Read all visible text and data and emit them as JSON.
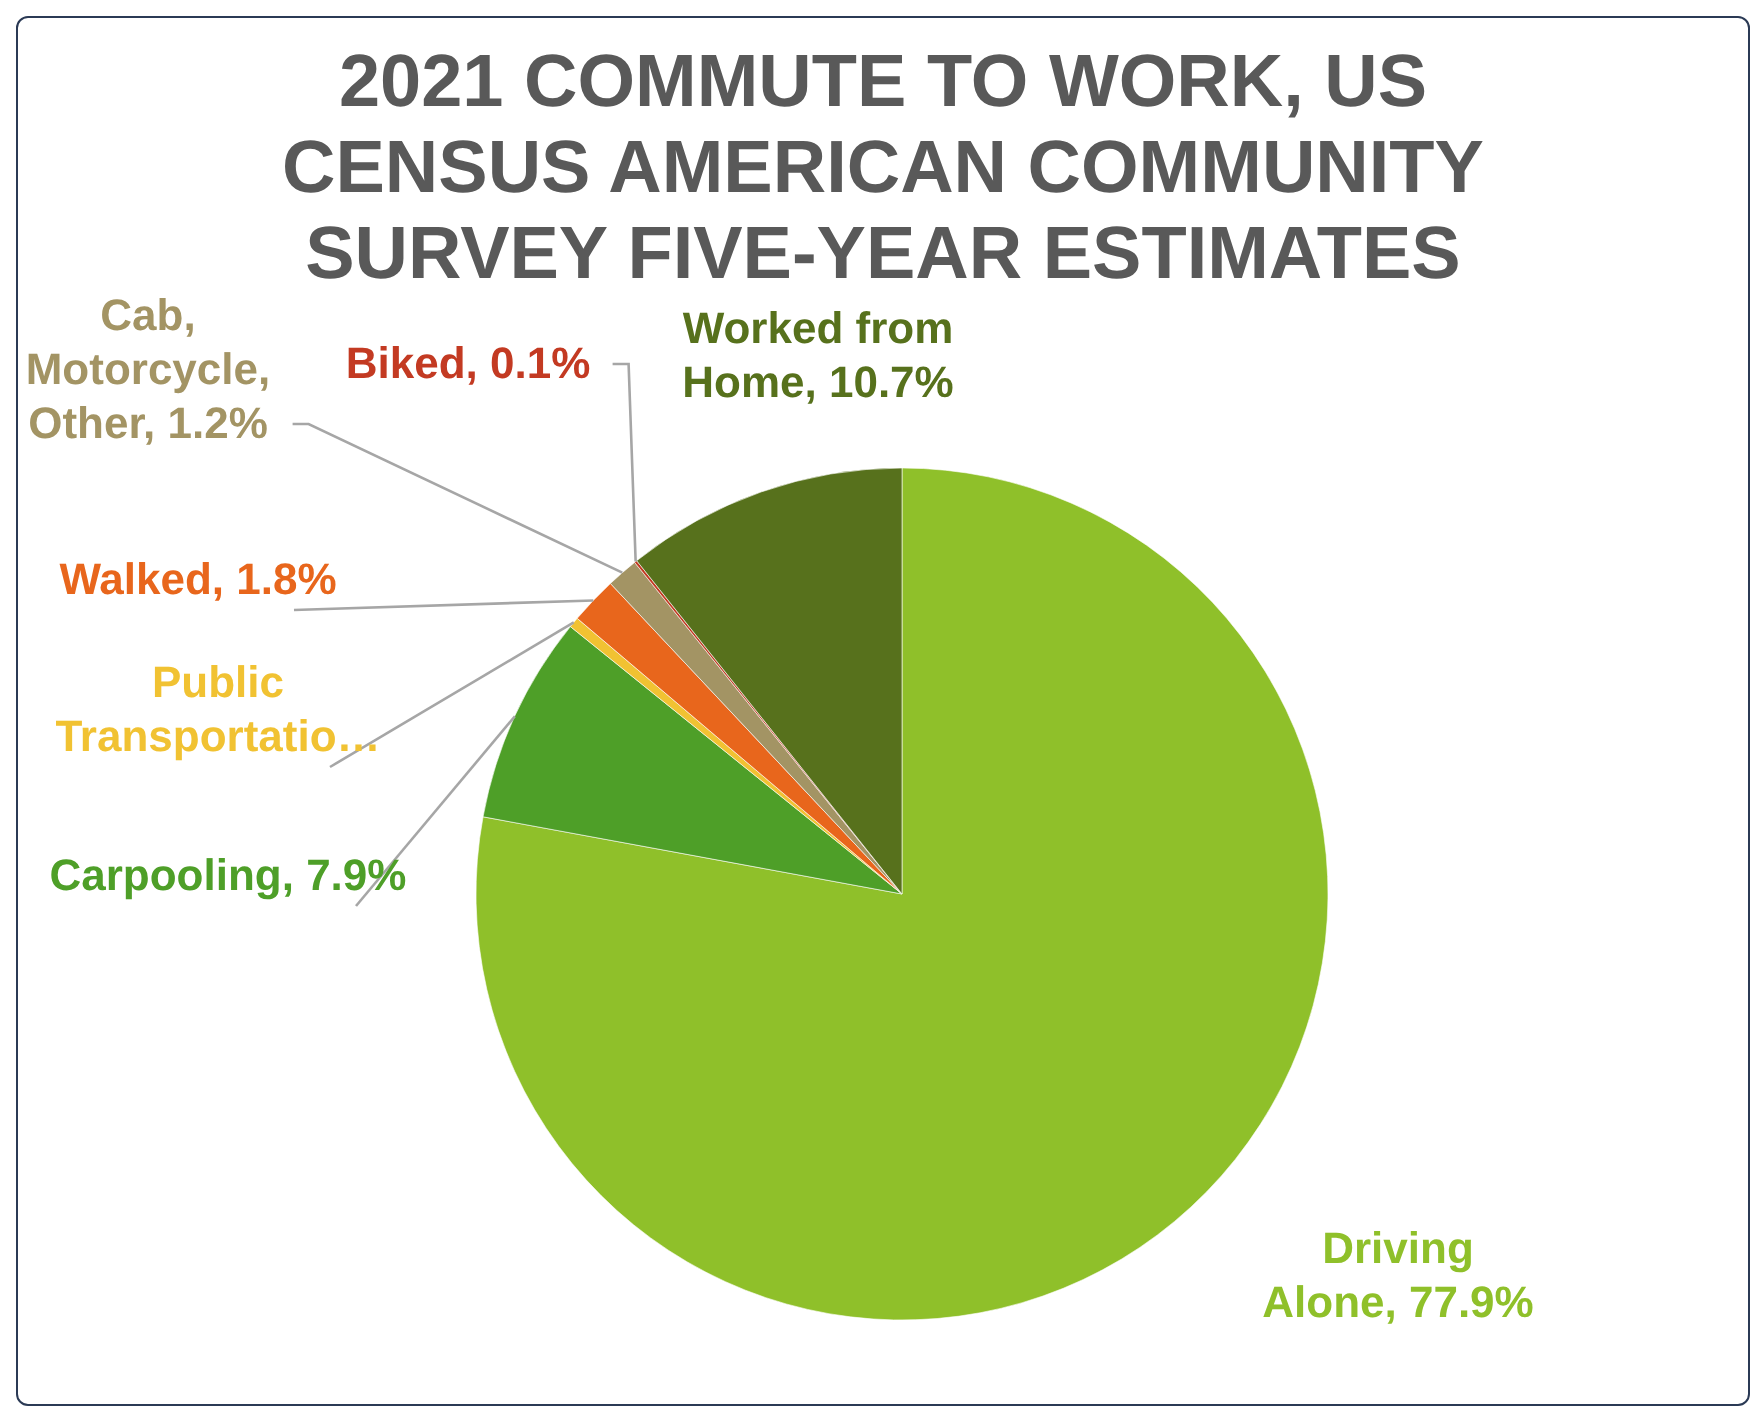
{
  "chart_data": {
    "type": "pie",
    "title": "2021 COMMUTE TO WORK, US CENSUS AMERICAN COMMUNITY SURVEY FIVE-YEAR ESTIMATES",
    "categories": [
      "Driving Alone",
      "Carpooling",
      "Public Transportatio…",
      "Walked",
      "Cab, Motorcycle, Other",
      "Biked",
      "Worked from Home"
    ],
    "values": [
      77.9,
      7.9,
      0.4,
      1.8,
      1.2,
      0.1,
      10.7
    ],
    "value_labels": [
      "77.9%",
      "7.9%",
      null,
      "1.8%",
      "1.2%",
      "0.1%",
      "10.7%"
    ],
    "colors": [
      "#8fc02a",
      "#4e9f28",
      "#f1c232",
      "#e8661c",
      "#a39464",
      "#c33a22",
      "#57711c"
    ]
  }
}
